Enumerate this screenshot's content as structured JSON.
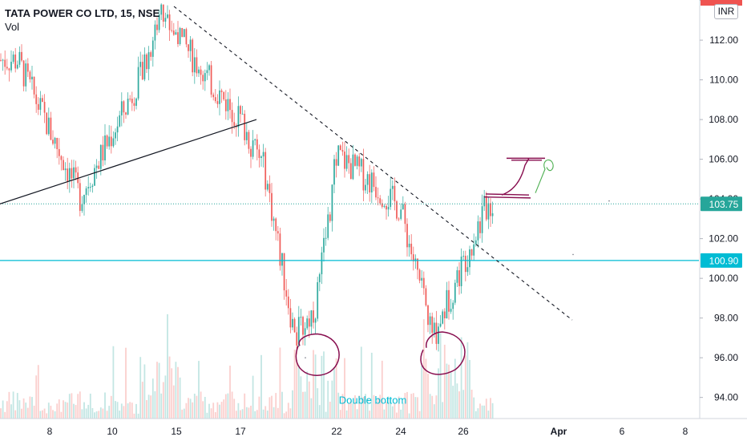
{
  "header": {
    "title": "TATA POWER CO LTD, 15, NSE",
    "indicator": "Vol"
  },
  "currency": "INR",
  "annotation": "Double bottom",
  "colors": {
    "up": "#26a69a",
    "down": "#ef5350",
    "level_line": "#00bcd4",
    "price_badge": "#26a69a",
    "level_badge": "#00bcd4",
    "pen": "#880e4f",
    "pen_green": "#4caf50"
  },
  "chart_data": {
    "type": "candlestick",
    "symbol": "TATA POWER CO LTD",
    "interval": "15",
    "exchange": "NSE",
    "ylim": [
      93.3,
      113.7
    ],
    "y_ticks": [
      94.0,
      96.0,
      98.0,
      100.0,
      102.0,
      104.0,
      106.0,
      108.0,
      110.0,
      112.0,
      114.0
    ],
    "y_tick_labels": [
      "94.00",
      "96.00",
      "98.00",
      "100.00",
      "102.00",
      "104.00",
      "106.00",
      "108.00",
      "110.00",
      "112.00",
      ""
    ],
    "x_tick_labels": [
      "8",
      "10",
      "15",
      "17",
      "22",
      "24",
      "26",
      "Apr",
      "6",
      "8"
    ],
    "x_ticks": [
      "Mar 8",
      "Mar 10",
      "Mar 15",
      "Mar 17",
      "Mar 22",
      "Mar 24",
      "Mar 26",
      "Apr 1",
      "Apr 6",
      "Apr 8"
    ],
    "last_price": 103.75,
    "last_price_label": "103.75",
    "horizontal_level": 100.9,
    "horizontal_level_label": "100.90",
    "key_points": [
      {
        "date": "Mar 7",
        "price": 111.0
      },
      {
        "date": "Mar 9",
        "price": 104.1
      },
      {
        "date": "Mar 12",
        "price": 110.5
      },
      {
        "date": "Mar 13",
        "price": 113.5
      },
      {
        "date": "Mar 16",
        "price": 110.0
      },
      {
        "date": "Mar 17",
        "price": 108.0
      },
      {
        "date": "Mar 18",
        "price": 105.5
      },
      {
        "date": "Mar 19",
        "price": 97.0
      },
      {
        "date": "Mar 20",
        "price": 98.5
      },
      {
        "date": "Mar 21",
        "price": 103.0
      },
      {
        "date": "Mar 22",
        "price": 106.2
      },
      {
        "date": "Mar 23",
        "price": 105.0
      },
      {
        "date": "Mar 24",
        "price": 103.5
      },
      {
        "date": "Mar 25",
        "price": 97.0
      },
      {
        "date": "Mar 26",
        "price": 100.8
      },
      {
        "date": "Mar 27",
        "price": 103.75
      }
    ],
    "volume": "present, relative bars",
    "grid": false
  }
}
